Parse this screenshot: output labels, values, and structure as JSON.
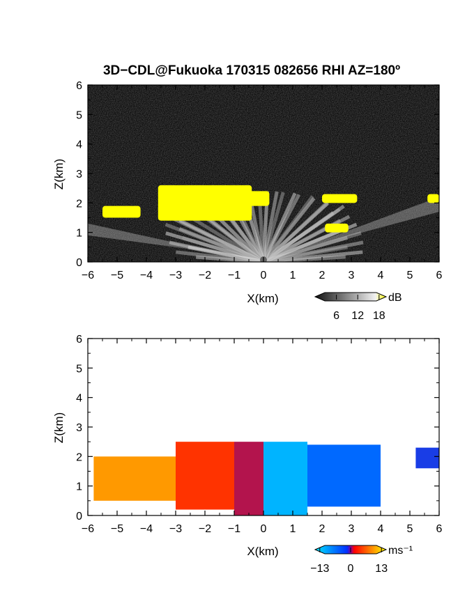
{
  "figure_title": "3D−CDL@Fukuoka 170315 082656 RHI AZ=180º",
  "chart_data": [
    {
      "type": "heatmap",
      "panel": "top",
      "quantity": "Signal intensity",
      "xlabel": "X(km)",
      "ylabel": "Z(km)",
      "xlim": [
        -6,
        6
      ],
      "ylim": [
        0,
        6
      ],
      "xticks": [
        "−6",
        "−5",
        "−4",
        "−3",
        "−2",
        "−1",
        "0",
        "1",
        "2",
        "3",
        "4",
        "5",
        "6"
      ],
      "yticks": [
        "0",
        "1",
        "2",
        "3",
        "4",
        "5",
        "6"
      ],
      "background": "noise (gray on black)",
      "saturated_color": "#ffff00",
      "bright_regions": [
        {
          "x": [
            -5.5,
            -4.2
          ],
          "z": [
            1.5,
            1.9
          ]
        },
        {
          "x": [
            -3.6,
            -0.4
          ],
          "z": [
            1.4,
            2.6
          ]
        },
        {
          "x": [
            -0.9,
            0.2
          ],
          "z": [
            1.9,
            2.4
          ]
        },
        {
          "x": [
            2.0,
            3.2
          ],
          "z": [
            2.0,
            2.3
          ]
        },
        {
          "x": [
            2.1,
            2.9
          ],
          "z": [
            1.0,
            1.3
          ]
        },
        {
          "x": [
            5.6,
            6.0
          ],
          "z": [
            2.0,
            2.3
          ]
        }
      ],
      "colorbar": {
        "label": "dB",
        "ticks": [
          "6",
          "12",
          "18"
        ],
        "range": [
          0,
          20
        ],
        "colors": [
          "#000000",
          "#ffffff",
          "#ffff00"
        ]
      }
    },
    {
      "type": "heatmap",
      "panel": "bottom",
      "quantity": "Doppler velocity",
      "xlabel": "X(km)",
      "ylabel": "Z(km)",
      "xlim": [
        -6,
        6
      ],
      "ylim": [
        0,
        6
      ],
      "xticks": [
        "−6",
        "−5",
        "−4",
        "−3",
        "−2",
        "−1",
        "0",
        "1",
        "2",
        "3",
        "4",
        "5",
        "6"
      ],
      "yticks": [
        "0",
        "1",
        "2",
        "3",
        "4",
        "5",
        "6"
      ],
      "regions": [
        {
          "x": [
            -5.8,
            -3.0
          ],
          "z": [
            0.5,
            2.0
          ],
          "velocity_ms": 11
        },
        {
          "x": [
            -3.0,
            -1.0
          ],
          "z": [
            0.2,
            2.5
          ],
          "velocity_ms": 7
        },
        {
          "x": [
            -1.0,
            0.0
          ],
          "z": [
            0.0,
            2.5
          ],
          "velocity_ms": 2
        },
        {
          "x": [
            0.0,
            1.5
          ],
          "z": [
            0.0,
            2.5
          ],
          "velocity_ms": -11
        },
        {
          "x": [
            1.5,
            4.0
          ],
          "z": [
            0.3,
            2.4
          ],
          "velocity_ms": -7
        },
        {
          "x": [
            5.2,
            6.0
          ],
          "z": [
            1.6,
            2.3
          ],
          "velocity_ms": -4
        }
      ],
      "colorbar": {
        "label": "ms⁻¹",
        "ticks": [
          "−13",
          "0",
          "13"
        ],
        "range": [
          -15,
          15
        ],
        "colors": [
          "#00ffff",
          "#0044ff",
          "#ff0000",
          "#ffff00"
        ]
      }
    }
  ]
}
